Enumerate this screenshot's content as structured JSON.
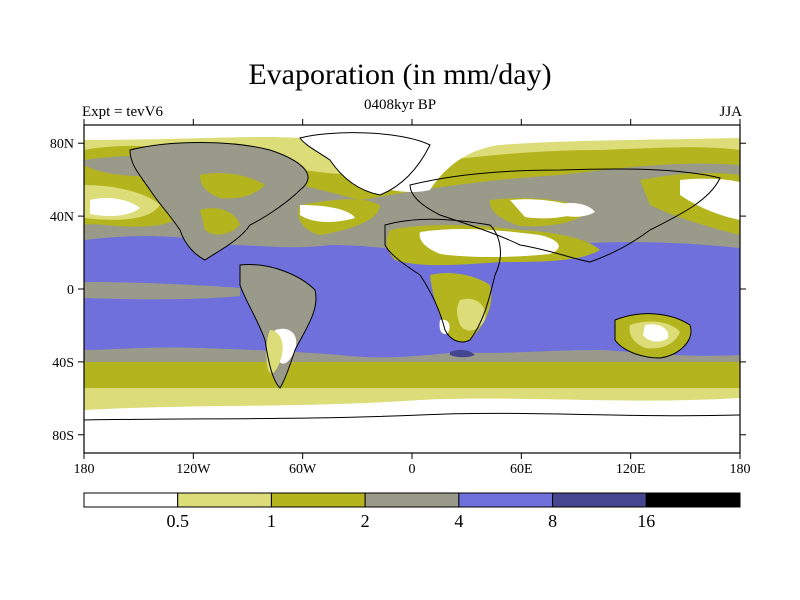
{
  "title": "Evaporation (in mm/day)",
  "subtitle": "0408kyr BP",
  "left_label": "Expt = tevV6",
  "right_label": "JJA",
  "map": {
    "projection": "cylindrical-equidistant",
    "lon_range": [
      -180,
      180
    ],
    "lat_range": [
      -90,
      90
    ],
    "lat_ticks": [
      {
        "lat": 80,
        "label": "80N"
      },
      {
        "lat": 40,
        "label": "40N"
      },
      {
        "lat": 0,
        "label": "0"
      },
      {
        "lat": -40,
        "label": "40S"
      },
      {
        "lat": -80,
        "label": "80S"
      }
    ],
    "lon_ticks": [
      {
        "lon": -180,
        "label": "180"
      },
      {
        "lon": -120,
        "label": "120W"
      },
      {
        "lon": -60,
        "label": "60W"
      },
      {
        "lon": 0,
        "label": "0"
      },
      {
        "lon": 60,
        "label": "60E"
      },
      {
        "lon": 120,
        "label": "120E"
      },
      {
        "lon": 180,
        "label": "180"
      }
    ]
  },
  "colorbar": {
    "colors": [
      "#ffffff",
      "#dcdc78",
      "#b4b41e",
      "#9a9a8a",
      "#7070dc",
      "#464690",
      "#000000"
    ],
    "labels": [
      "0.5",
      "1",
      "2",
      "4",
      "8",
      "16"
    ]
  },
  "colors": {
    "white": "#ffffff",
    "light_yellow": "#dcdc78",
    "olive": "#b4b41e",
    "gray": "#9a9a8a",
    "blue": "#7070dc",
    "dark_blue": "#464690",
    "black": "#000000"
  }
}
